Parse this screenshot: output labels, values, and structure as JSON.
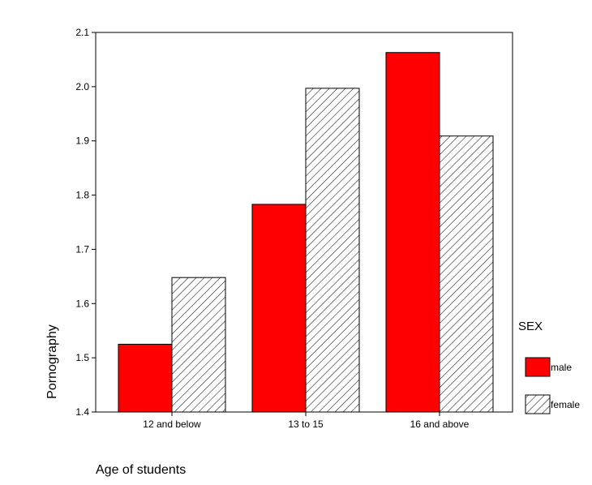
{
  "chart_data": {
    "type": "bar",
    "categories": [
      "12 and below",
      "13 to 15",
      "16 and above"
    ],
    "series": [
      {
        "name": "male",
        "values": [
          1.525,
          1.783,
          2.063
        ],
        "color": "#ff0000",
        "pattern": "solid"
      },
      {
        "name": "female",
        "values": [
          1.648,
          1.997,
          1.909
        ],
        "color": "#ffffff",
        "pattern": "diagonal-hatch"
      }
    ],
    "title": "",
    "xlabel": "Age of students",
    "ylabel": "Pornography",
    "ylim": [
      1.4,
      2.1
    ],
    "yticks": [
      "1.4",
      "1.5",
      "1.6",
      "1.7",
      "1.8",
      "1.9",
      "2.0",
      "2.1"
    ],
    "grid": false,
    "legend": {
      "title": "SEX",
      "placement": "right"
    }
  }
}
